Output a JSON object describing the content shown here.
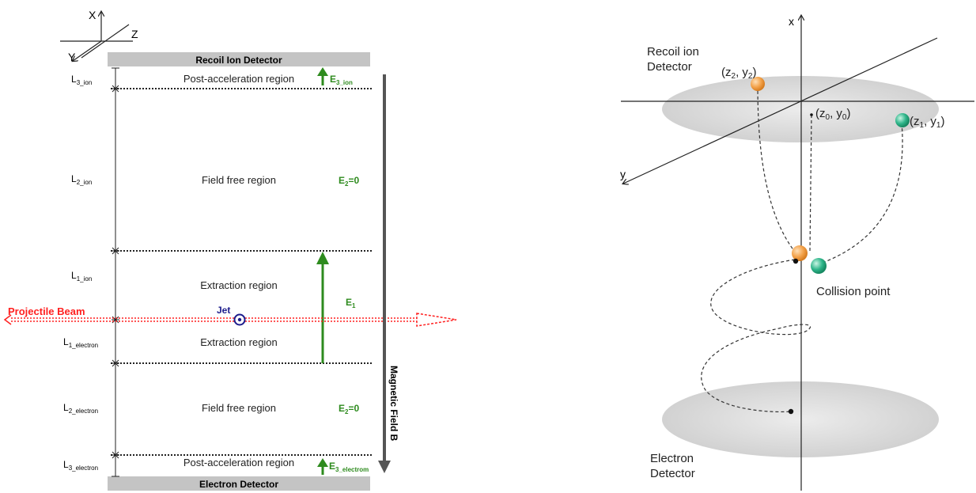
{
  "left_diagram": {
    "axes": {
      "x": "X",
      "z": "Z",
      "y": "Y"
    },
    "recoil_detector": "Recoil Ion Detector",
    "electron_detector": "Electron Detector",
    "regions": {
      "post_accel_top": "Post-acceleration region",
      "field_free_top": "Field free region",
      "extraction_top": "Extraction region",
      "extraction_bottom": "Extraction region",
      "field_free_bottom": "Field free region",
      "post_accel_bottom": "Post-acceleration region"
    },
    "lengths": {
      "l3_ion": {
        "main": "L",
        "sub": "3_ion"
      },
      "l2_ion": {
        "main": "L",
        "sub": "2_ion"
      },
      "l1_ion": {
        "main": "L",
        "sub": "1_ion"
      },
      "l1_electron": {
        "main": "L",
        "sub": "1_electron"
      },
      "l2_electron": {
        "main": "L",
        "sub": "2_electron"
      },
      "l3_electron": {
        "main": "L",
        "sub": "3_electron"
      }
    },
    "fields": {
      "e3_ion": {
        "main": "E",
        "sub": "3_ion"
      },
      "e2_top": {
        "main": "E",
        "sub": "2",
        "rest": "=0"
      },
      "e1": {
        "main": "E",
        "sub": "1"
      },
      "e2_bottom": {
        "main": "E",
        "sub": "2",
        "rest": "=0"
      },
      "e3_electron": {
        "main": "E",
        "sub": "3_electrom"
      }
    },
    "projectile_beam": "Projectile Beam",
    "jet": "Jet",
    "magnetic_field": "Magnetic Field B"
  },
  "right_diagram": {
    "axes": {
      "x": "x",
      "y": "y"
    },
    "recoil_detector": [
      "Recoil ion",
      "Detector"
    ],
    "electron_detector": [
      "Electron",
      "Detector"
    ],
    "points": {
      "p2": {
        "a": "(z",
        "s1": "2",
        "b": ", y",
        "s2": "2",
        "c": ")"
      },
      "p0": {
        "a": "(z",
        "s1": "0",
        "b": ", y",
        "s2": "0",
        "c": ")"
      },
      "p1": {
        "a": "(z",
        "s1": "1",
        "b": ", y",
        "s2": "1",
        "c": ")"
      }
    },
    "collision_point": "Collision point"
  },
  "colors": {
    "field_green": "#2e8b1e",
    "beam_red": "#ff2020",
    "jet_blue": "#1c1c8c",
    "detector_gray": "#c4c4c4",
    "orange_ball": "#f3a24a",
    "green_ball": "#2fb58a"
  }
}
